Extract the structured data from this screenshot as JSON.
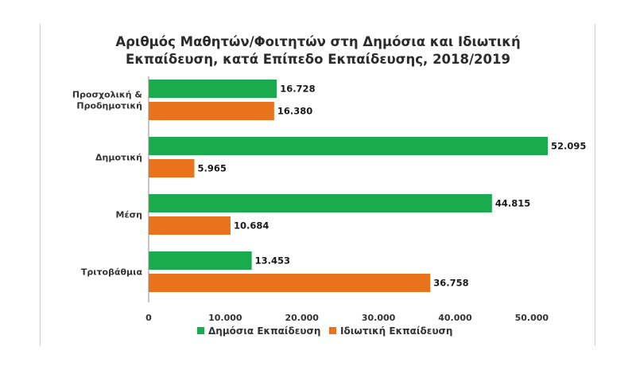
{
  "chart_data": {
    "type": "bar",
    "orientation": "horizontal",
    "title_lines": [
      "Αριθμός Μαθητών/Φοιτητών στη Δημόσια και Ιδιωτική",
      "Εκπαίδευση, κατά Επίπεδο Εκπαίδευσης, 2018/2019"
    ],
    "categories": [
      [
        "Προσχολική &",
        "Προδημοτική"
      ],
      [
        "Δημοτική"
      ],
      [
        "Μέση"
      ],
      [
        "Τριτοβάθμια"
      ]
    ],
    "series": [
      {
        "name": "Δημόσια Εκπαίδευση",
        "color": "#1aab4f",
        "values": [
          16728,
          52095,
          44815,
          13453
        ],
        "labels": [
          "16.728",
          "52.095",
          "44.815",
          "13.453"
        ]
      },
      {
        "name": "Ιδιωτική Εκπαίδευση",
        "color": "#e8731c",
        "values": [
          16380,
          5965,
          10684,
          36758
        ],
        "labels": [
          "16.380",
          "5.965",
          "10.684",
          "36.758"
        ]
      }
    ],
    "xlim": [
      0,
      55000
    ],
    "xticks": [
      0,
      10000,
      20000,
      30000,
      40000,
      50000
    ],
    "xtick_labels": [
      "0",
      "10.000",
      "20.000",
      "30.000",
      "40.000",
      "50.000"
    ],
    "grid": false,
    "legend": "bottom"
  }
}
